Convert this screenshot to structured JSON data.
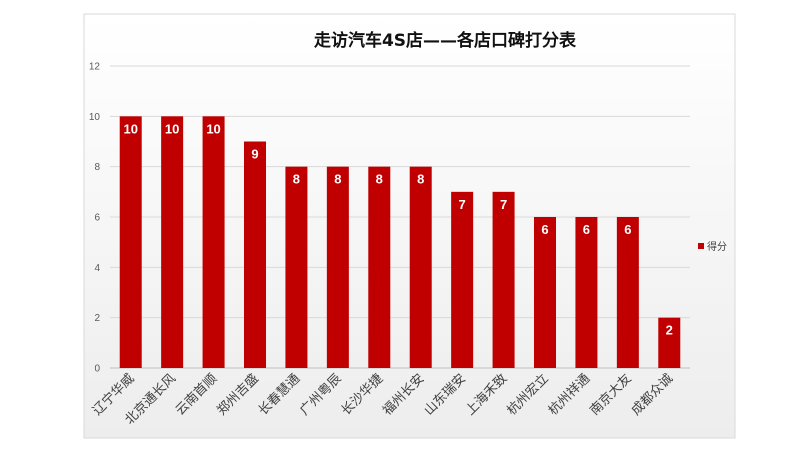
{
  "chart_data": {
    "type": "bar",
    "title": "走访汽车4S店——各店口碑打分表",
    "xlabel": "",
    "ylabel": "",
    "ylim": [
      0,
      12
    ],
    "yticks": [
      0,
      2,
      4,
      6,
      8,
      10,
      12
    ],
    "grid": true,
    "legend_position": "right",
    "categories": [
      "辽宁华威",
      "北京通长风",
      "云南首顺",
      "郑州吉盛",
      "长春慧通",
      "广州粤辰",
      "长沙华捷",
      "福州长安",
      "山东瑞安",
      "上海禾致",
      "杭州宏立",
      "杭州祥通",
      "南京大友",
      "成都众诚"
    ],
    "series": [
      {
        "name": "得分",
        "color": "#c00000",
        "values": [
          10,
          10,
          10,
          9,
          8,
          8,
          8,
          8,
          7,
          7,
          6,
          6,
          6,
          2
        ]
      }
    ]
  }
}
